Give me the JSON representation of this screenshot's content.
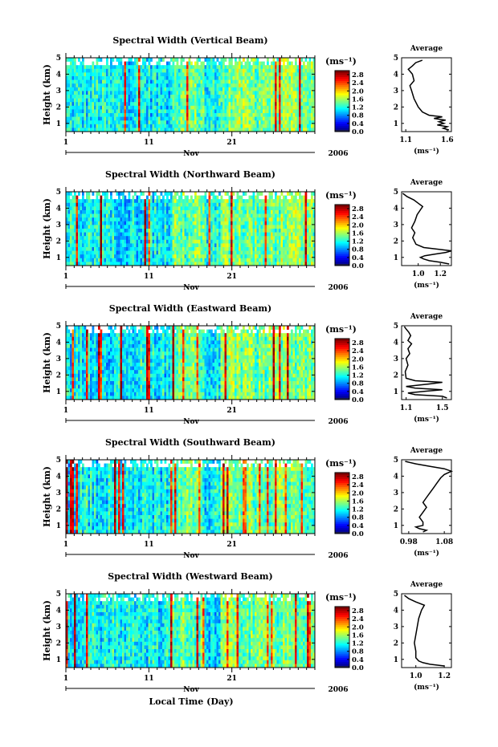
{
  "figure": {
    "xlabel": "Local Time (Day)"
  },
  "chart_data": [
    {
      "type": "heatmap",
      "title": "Spectral Width (Vertical Beam)",
      "ylabel": "Height (km)",
      "ylim": [
        0.5,
        5
      ],
      "yticks": [
        1,
        2,
        3,
        4,
        5
      ],
      "xlim": [
        1,
        31
      ],
      "xticks": [
        1,
        11,
        21
      ],
      "month_label": "Nov",
      "year_label": "2006",
      "colorbar": {
        "unit": "(ms⁻¹)",
        "ticks": [
          "0.0",
          "0.4",
          "0.8",
          "1.2",
          "1.6",
          "2.0",
          "2.4",
          "2.8"
        ],
        "range": [
          0,
          3.0
        ]
      },
      "profile": {
        "title": "Average",
        "xlabel": "(ms⁻¹)",
        "xlim": [
          1.05,
          1.65
        ],
        "xticks": [
          "1.1",
          "1.6"
        ],
        "xtick_values": [
          1.1,
          1.6
        ],
        "ylim": [
          0.5,
          5
        ],
        "yticks": [
          1,
          2,
          3,
          4,
          5
        ],
        "points": [
          [
            1.62,
            0.6
          ],
          [
            1.55,
            0.7
          ],
          [
            1.6,
            0.8
          ],
          [
            1.48,
            0.9
          ],
          [
            1.56,
            1.0
          ],
          [
            1.5,
            1.1
          ],
          [
            1.58,
            1.2
          ],
          [
            1.44,
            1.3
          ],
          [
            1.54,
            1.4
          ],
          [
            1.38,
            1.5
          ],
          [
            1.3,
            1.7
          ],
          [
            1.25,
            2.0
          ],
          [
            1.2,
            2.5
          ],
          [
            1.17,
            3.0
          ],
          [
            1.15,
            3.3
          ],
          [
            1.2,
            3.6
          ],
          [
            1.18,
            4.0
          ],
          [
            1.13,
            4.3
          ],
          [
            1.18,
            4.5
          ],
          [
            1.22,
            4.7
          ],
          [
            1.3,
            4.85
          ]
        ]
      }
    },
    {
      "type": "heatmap",
      "title": "Spectral Width (Northward Beam)",
      "ylabel": "Height (km)",
      "ylim": [
        0.5,
        5
      ],
      "yticks": [
        1,
        2,
        3,
        4,
        5
      ],
      "xlim": [
        1,
        31
      ],
      "xticks": [
        1,
        11,
        21
      ],
      "month_label": "Nov",
      "year_label": "2006",
      "colorbar": {
        "unit": "(ms⁻¹)",
        "ticks": [
          "0.0",
          "0.4",
          "0.8",
          "1.2",
          "1.6",
          "2.0",
          "2.4",
          "2.8"
        ],
        "range": [
          0,
          3.0
        ]
      },
      "profile": {
        "title": "Average",
        "xlabel": "(ms⁻¹)",
        "xlim": [
          0.85,
          1.3
        ],
        "xticks": [
          "1.0",
          "1.2"
        ],
        "xtick_values": [
          1.0,
          1.2
        ],
        "ylim": [
          0.5,
          5
        ],
        "yticks": [
          1,
          2,
          3,
          4,
          5
        ],
        "points": [
          [
            1.28,
            0.6
          ],
          [
            1.2,
            0.7
          ],
          [
            1.1,
            0.8
          ],
          [
            1.05,
            0.9
          ],
          [
            1.02,
            1.0
          ],
          [
            1.06,
            1.1
          ],
          [
            1.15,
            1.2
          ],
          [
            1.25,
            1.3
          ],
          [
            1.3,
            1.4
          ],
          [
            1.18,
            1.5
          ],
          [
            1.05,
            1.6
          ],
          [
            0.98,
            1.8
          ],
          [
            0.95,
            2.2
          ],
          [
            0.97,
            2.5
          ],
          [
            0.94,
            2.8
          ],
          [
            0.97,
            3.2
          ],
          [
            0.99,
            3.6
          ],
          [
            1.02,
            3.9
          ],
          [
            1.04,
            4.1
          ],
          [
            1.0,
            4.3
          ],
          [
            0.96,
            4.5
          ],
          [
            0.9,
            4.7
          ],
          [
            0.86,
            4.9
          ]
        ]
      }
    },
    {
      "type": "heatmap",
      "title": "Spectral Width (Eastward Beam)",
      "ylabel": "Height (km)",
      "ylim": [
        0.5,
        5
      ],
      "yticks": [
        1,
        2,
        3,
        4,
        5
      ],
      "xlim": [
        1,
        31
      ],
      "xticks": [
        1,
        11,
        21
      ],
      "month_label": "Nov",
      "year_label": "2006",
      "colorbar": {
        "unit": "(ms⁻¹)",
        "ticks": [
          "0.0",
          "0.4",
          "0.8",
          "1.2",
          "1.6",
          "2.0",
          "2.4",
          "2.8"
        ],
        "range": [
          0,
          3.0
        ]
      },
      "profile": {
        "title": "Average",
        "xlabel": "(ms⁻¹)",
        "xlim": [
          1.05,
          1.6
        ],
        "xticks": [
          "1.1",
          "1.5"
        ],
        "xtick_values": [
          1.1,
          1.5
        ],
        "ylim": [
          0.5,
          5
        ],
        "yticks": [
          1,
          2,
          3,
          4,
          5
        ],
        "points": [
          [
            1.55,
            0.6
          ],
          [
            1.5,
            0.7
          ],
          [
            1.2,
            0.8
          ],
          [
            1.12,
            0.9
          ],
          [
            1.3,
            1.0
          ],
          [
            1.5,
            1.1
          ],
          [
            1.2,
            1.2
          ],
          [
            1.1,
            1.3
          ],
          [
            1.35,
            1.45
          ],
          [
            1.5,
            1.55
          ],
          [
            1.2,
            1.65
          ],
          [
            1.1,
            1.8
          ],
          [
            1.09,
            2.2
          ],
          [
            1.12,
            2.6
          ],
          [
            1.1,
            3.0
          ],
          [
            1.14,
            3.3
          ],
          [
            1.12,
            3.6
          ],
          [
            1.16,
            3.9
          ],
          [
            1.12,
            4.1
          ],
          [
            1.15,
            4.4
          ],
          [
            1.13,
            4.6
          ],
          [
            1.1,
            4.8
          ],
          [
            1.08,
            4.95
          ]
        ]
      }
    },
    {
      "type": "heatmap",
      "title": "Spectral Width (Southward Beam)",
      "ylabel": "Height (km)",
      "ylim": [
        0.5,
        5
      ],
      "yticks": [
        1,
        2,
        3,
        4,
        5
      ],
      "xlim": [
        1,
        31
      ],
      "xticks": [
        1,
        11,
        21
      ],
      "month_label": "Nov",
      "year_label": "2006",
      "colorbar": {
        "unit": "(ms⁻¹)",
        "ticks": [
          "0.0",
          "0.4",
          "0.8",
          "1.2",
          "1.6",
          "2.0",
          "2.4",
          "2.8"
        ],
        "range": [
          0,
          3.0
        ]
      },
      "profile": {
        "title": "Average",
        "xlabel": "(ms⁻¹)",
        "xlim": [
          0.96,
          1.1
        ],
        "xticks": [
          "0.98",
          "1.08"
        ],
        "xtick_values": [
          0.98,
          1.08
        ],
        "ylim": [
          0.5,
          5
        ],
        "yticks": [
          1,
          2,
          3,
          4,
          5
        ],
        "points": [
          [
            1.02,
            0.6
          ],
          [
            1.03,
            0.7
          ],
          [
            1.01,
            0.8
          ],
          [
            1.0,
            0.9
          ],
          [
            1.02,
            1.0
          ],
          [
            1.02,
            1.2
          ],
          [
            1.01,
            1.5
          ],
          [
            1.02,
            1.8
          ],
          [
            1.03,
            2.1
          ],
          [
            1.02,
            2.4
          ],
          [
            1.03,
            2.7
          ],
          [
            1.04,
            3.0
          ],
          [
            1.05,
            3.3
          ],
          [
            1.06,
            3.6
          ],
          [
            1.07,
            3.9
          ],
          [
            1.08,
            4.1
          ],
          [
            1.1,
            4.3
          ],
          [
            1.08,
            4.45
          ],
          [
            1.04,
            4.6
          ],
          [
            1.0,
            4.75
          ],
          [
            0.97,
            4.9
          ]
        ]
      }
    },
    {
      "type": "heatmap",
      "title": "Spectral Width (Westward Beam)",
      "ylabel": "Height (km)",
      "ylim": [
        0.5,
        5
      ],
      "yticks": [
        1,
        2,
        3,
        4,
        5
      ],
      "xlim": [
        1,
        31
      ],
      "xticks": [
        1,
        11,
        21
      ],
      "month_label": "Nov",
      "year_label": "2006",
      "colorbar": {
        "unit": "(ms⁻¹)",
        "ticks": [
          "0.0",
          "0.4",
          "0.8",
          "1.2",
          "1.6",
          "2.0",
          "2.4",
          "2.8"
        ],
        "range": [
          0,
          3.0
        ]
      },
      "profile": {
        "title": "Average",
        "xlabel": "(ms⁻¹)",
        "xlim": [
          0.9,
          1.25
        ],
        "xticks": [
          "1.0",
          "1.2"
        ],
        "xtick_values": [
          1.0,
          1.2
        ],
        "ylim": [
          0.5,
          5
        ],
        "yticks": [
          1,
          2,
          3,
          4,
          5
        ],
        "points": [
          [
            1.2,
            0.6
          ],
          [
            1.1,
            0.7
          ],
          [
            1.05,
            0.8
          ],
          [
            1.02,
            0.9
          ],
          [
            1.0,
            1.1
          ],
          [
            1.0,
            1.5
          ],
          [
            0.99,
            2.0
          ],
          [
            1.0,
            2.5
          ],
          [
            1.01,
            3.0
          ],
          [
            1.02,
            3.5
          ],
          [
            1.04,
            4.0
          ],
          [
            1.06,
            4.3
          ],
          [
            1.0,
            4.5
          ],
          [
            0.95,
            4.7
          ],
          [
            0.92,
            4.9
          ]
        ]
      }
    }
  ]
}
